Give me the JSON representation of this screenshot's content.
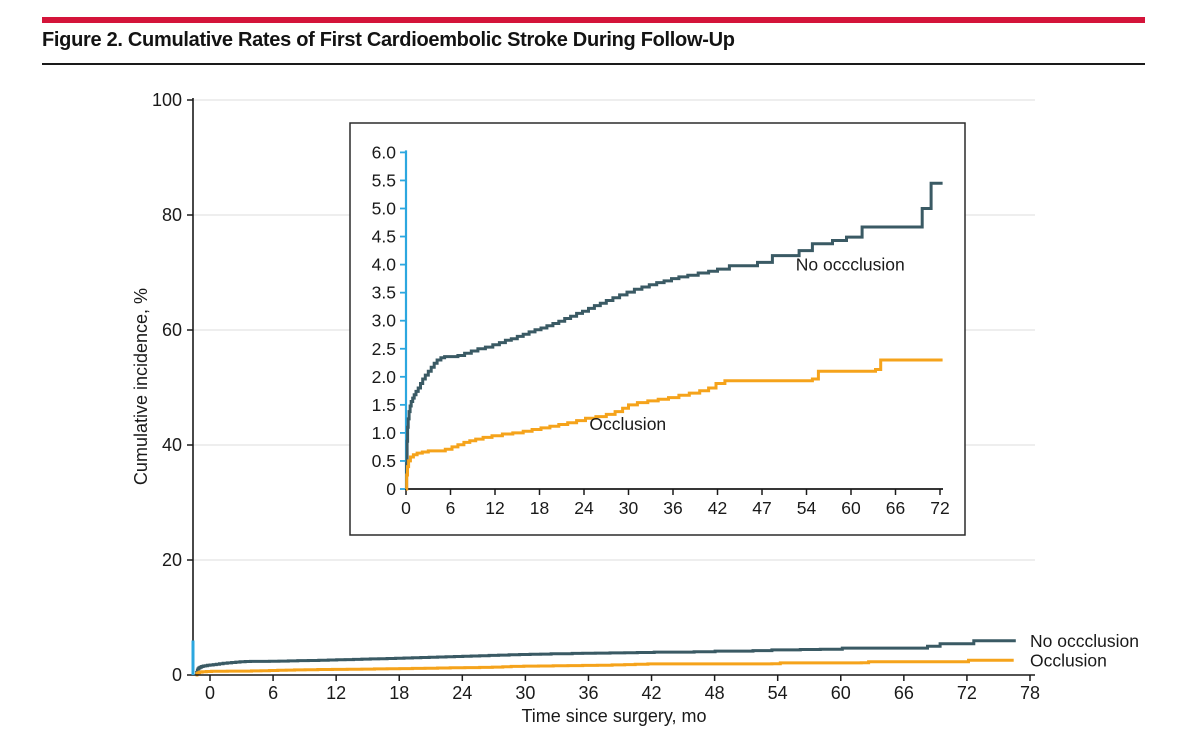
{
  "figure": {
    "title": "Figure 2. Cumulative Rates of First Cardioembolic Stroke During Follow-Up",
    "accent_color": "#D4143A"
  },
  "chart_data": {
    "type": "line",
    "title": "Cumulative Rates of First Cardioembolic Stroke During Follow-Up",
    "xlabel": "Time since surgery, mo",
    "ylabel": "Cumulative incidence, %",
    "colors": {
      "grid": "#E4E4E4",
      "axis": "#1A1A1A",
      "inset_axis_blue": "#2CA7DF",
      "inset_box_border": "#2B2B2B"
    },
    "main_axis": {
      "x_ticks": [
        0,
        6,
        12,
        18,
        24,
        30,
        36,
        42,
        48,
        54,
        60,
        66,
        72,
        78
      ],
      "y_ticks": [
        0,
        20,
        40,
        60,
        80,
        100
      ],
      "xlim": [
        0,
        78
      ],
      "ylim": [
        0,
        100
      ],
      "grid": true,
      "zoom_bracket_range": [
        0,
        6
      ]
    },
    "inset_axis": {
      "x_tick_labels": [
        "0",
        "6",
        "12",
        "18",
        "24",
        "30",
        "36",
        "42",
        "47",
        "54",
        "60",
        "66",
        "72"
      ],
      "y_ticks": [
        0,
        0.5,
        1,
        1.5,
        2,
        2.5,
        3,
        3.5,
        4,
        4.5,
        5,
        5.5,
        6
      ],
      "y_tick_labels": [
        "0",
        "0.5",
        "1.0",
        "1.5",
        "2.0",
        "2.5",
        "3.0",
        "3.5",
        "4.0",
        "4.5",
        "5.0",
        "5.5",
        "6.0"
      ],
      "xlim": [
        0,
        72
      ],
      "ylim": [
        0,
        6
      ]
    },
    "series": [
      {
        "name": "No occclusion",
        "color": "#3A5A64",
        "points": [
          [
            0,
            0
          ],
          [
            0.08,
            0.45
          ],
          [
            0.15,
            0.85
          ],
          [
            0.22,
            1.1
          ],
          [
            0.3,
            1.25
          ],
          [
            0.42,
            1.38
          ],
          [
            0.55,
            1.48
          ],
          [
            0.7,
            1.56
          ],
          [
            0.9,
            1.62
          ],
          [
            1.1,
            1.68
          ],
          [
            1.35,
            1.74
          ],
          [
            1.65,
            1.8
          ],
          [
            1.95,
            1.88
          ],
          [
            2.25,
            1.96
          ],
          [
            2.6,
            2.03
          ],
          [
            3,
            2.1
          ],
          [
            3.4,
            2.17
          ],
          [
            3.8,
            2.24
          ],
          [
            4.2,
            2.3
          ],
          [
            4.7,
            2.34
          ],
          [
            5.2,
            2.36
          ],
          [
            7,
            2.38
          ],
          [
            7.9,
            2.42
          ],
          [
            8.8,
            2.46
          ],
          [
            9.7,
            2.5
          ],
          [
            10.7,
            2.53
          ],
          [
            11.7,
            2.57
          ],
          [
            12.6,
            2.61
          ],
          [
            13.4,
            2.65
          ],
          [
            14.2,
            2.68
          ],
          [
            15,
            2.72
          ],
          [
            15.8,
            2.76
          ],
          [
            16.6,
            2.8
          ],
          [
            17.4,
            2.84
          ],
          [
            18.2,
            2.87
          ],
          [
            19,
            2.91
          ],
          [
            19.8,
            2.95
          ],
          [
            20.6,
            2.99
          ],
          [
            21.4,
            3.04
          ],
          [
            22.2,
            3.08
          ],
          [
            23,
            3.13
          ],
          [
            23.8,
            3.17
          ],
          [
            24.6,
            3.22
          ],
          [
            25.4,
            3.27
          ],
          [
            26.2,
            3.31
          ],
          [
            27,
            3.36
          ],
          [
            27.9,
            3.41
          ],
          [
            28.8,
            3.46
          ],
          [
            29.8,
            3.51
          ],
          [
            30.8,
            3.56
          ],
          [
            31.8,
            3.6
          ],
          [
            32.8,
            3.64
          ],
          [
            33.8,
            3.68
          ],
          [
            34.8,
            3.71
          ],
          [
            35.8,
            3.75
          ],
          [
            36.8,
            3.78
          ],
          [
            38,
            3.81
          ],
          [
            39.4,
            3.85
          ],
          [
            40.8,
            3.88
          ],
          [
            42,
            3.92
          ],
          [
            43.6,
            3.98
          ],
          [
            47.4,
            4.04
          ],
          [
            49.4,
            4.16
          ],
          [
            53,
            4.25
          ],
          [
            54.8,
            4.37
          ],
          [
            57.5,
            4.43
          ],
          [
            59.4,
            4.49
          ],
          [
            61.5,
            4.67
          ],
          [
            69.6,
            5.0
          ],
          [
            70.8,
            5.45
          ],
          [
            74,
            5.95
          ],
          [
            78,
            5.95
          ]
        ]
      },
      {
        "name": "Occlusion",
        "color": "#F5A31B",
        "points": [
          [
            0,
            0
          ],
          [
            0.1,
            0.25
          ],
          [
            0.2,
            0.4
          ],
          [
            0.35,
            0.5
          ],
          [
            0.6,
            0.57
          ],
          [
            1,
            0.61
          ],
          [
            1.5,
            0.64
          ],
          [
            2.2,
            0.66
          ],
          [
            3,
            0.68
          ],
          [
            5.3,
            0.71
          ],
          [
            6.2,
            0.75
          ],
          [
            7,
            0.79
          ],
          [
            7.8,
            0.83
          ],
          [
            8.6,
            0.86
          ],
          [
            9.4,
            0.89
          ],
          [
            10.4,
            0.92
          ],
          [
            11.6,
            0.95
          ],
          [
            13,
            0.98
          ],
          [
            14.4,
            1.0
          ],
          [
            15.8,
            1.03
          ],
          [
            17,
            1.06
          ],
          [
            18.2,
            1.09
          ],
          [
            19.4,
            1.12
          ],
          [
            20.6,
            1.15
          ],
          [
            21.8,
            1.18
          ],
          [
            23,
            1.22
          ],
          [
            24.2,
            1.26
          ],
          [
            25.6,
            1.29
          ],
          [
            27,
            1.33
          ],
          [
            28.2,
            1.38
          ],
          [
            29.2,
            1.44
          ],
          [
            30,
            1.5
          ],
          [
            31.2,
            1.54
          ],
          [
            32.6,
            1.57
          ],
          [
            34,
            1.6
          ],
          [
            35.4,
            1.63
          ],
          [
            36.8,
            1.67
          ],
          [
            38.2,
            1.71
          ],
          [
            39.6,
            1.75
          ],
          [
            40.8,
            1.8
          ],
          [
            41.8,
            1.88
          ],
          [
            43,
            1.93
          ],
          [
            54.8,
            1.96
          ],
          [
            55.6,
            2.1
          ],
          [
            63.3,
            2.13
          ],
          [
            64,
            2.3
          ],
          [
            73.5,
            2.55
          ],
          [
            77.8,
            2.55
          ]
        ]
      }
    ],
    "annotations": {
      "inset": [
        {
          "text": "No occclusion",
          "x": 59.9,
          "y": 4.0
        },
        {
          "text": "Occlusion",
          "x": 29.9,
          "y": 1.16
        }
      ],
      "main_end_labels": [
        {
          "text": "No occclusion",
          "series_index": 0
        },
        {
          "text": "Occlusion",
          "series_index": 1
        }
      ]
    },
    "legend_position": "end-of-line labels"
  }
}
